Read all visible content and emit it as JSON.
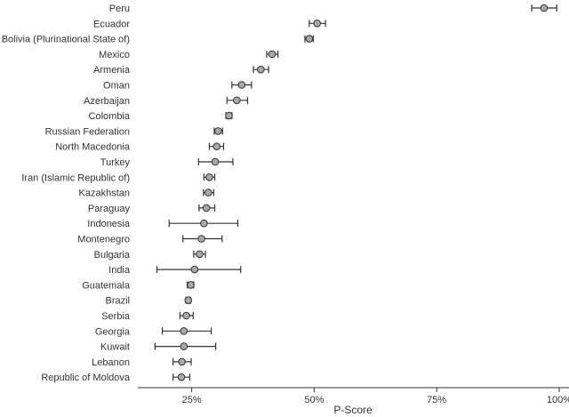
{
  "chart_data": {
    "type": "scatter",
    "xlabel": "P-Score",
    "xticks": [
      "25%",
      "50%",
      "75%",
      "100%"
    ],
    "xtick_values": [
      25,
      50,
      75,
      100
    ],
    "xlim": [
      14,
      102
    ],
    "grid": false,
    "error_bars": true,
    "categories": [
      "Peru",
      "Ecuador",
      "Bolivia (Plurinational State of)",
      "Mexico",
      "Armenia",
      "Oman",
      "Azerbaijan",
      "Colombia",
      "Russian Federation",
      "North Macedonia",
      "Turkey",
      "Iran (Islamic Republic of)",
      "Kazakhstan",
      "Paraguay",
      "Indonesia",
      "Montenegro",
      "Bulgaria",
      "India",
      "Guatemala",
      "Brazil",
      "Serbia",
      "Georgia",
      "Kuwait",
      "Lebanon",
      "Republic of Moldova"
    ],
    "values": [
      96.9,
      50.6,
      49.0,
      41.4,
      39.1,
      35.2,
      34.2,
      32.6,
      30.4,
      30.1,
      29.8,
      28.6,
      28.4,
      28.0,
      27.5,
      27.0,
      26.6,
      25.6,
      24.8,
      24.3,
      23.9,
      23.4,
      23.4,
      23.0,
      22.9
    ],
    "lower": [
      94.4,
      49.0,
      48.1,
      40.3,
      37.6,
      33.2,
      32.2,
      32.0,
      29.6,
      28.6,
      26.4,
      27.5,
      27.4,
      26.5,
      20.4,
      23.2,
      25.4,
      17.9,
      24.1,
      23.8,
      22.6,
      19.0,
      17.5,
      21.2,
      21.2
    ],
    "upper": [
      99.5,
      52.3,
      49.8,
      42.6,
      40.7,
      37.2,
      36.4,
      33.2,
      31.3,
      31.5,
      33.4,
      29.7,
      29.5,
      29.7,
      34.4,
      31.2,
      27.8,
      35.0,
      25.4,
      24.8,
      25.3,
      29.0,
      29.9,
      24.9,
      24.6
    ],
    "colors": {
      "marker_fill": "#a8a8a8",
      "marker_stroke": "#333333",
      "error_bar": "#333333",
      "axis": "#333333"
    }
  }
}
